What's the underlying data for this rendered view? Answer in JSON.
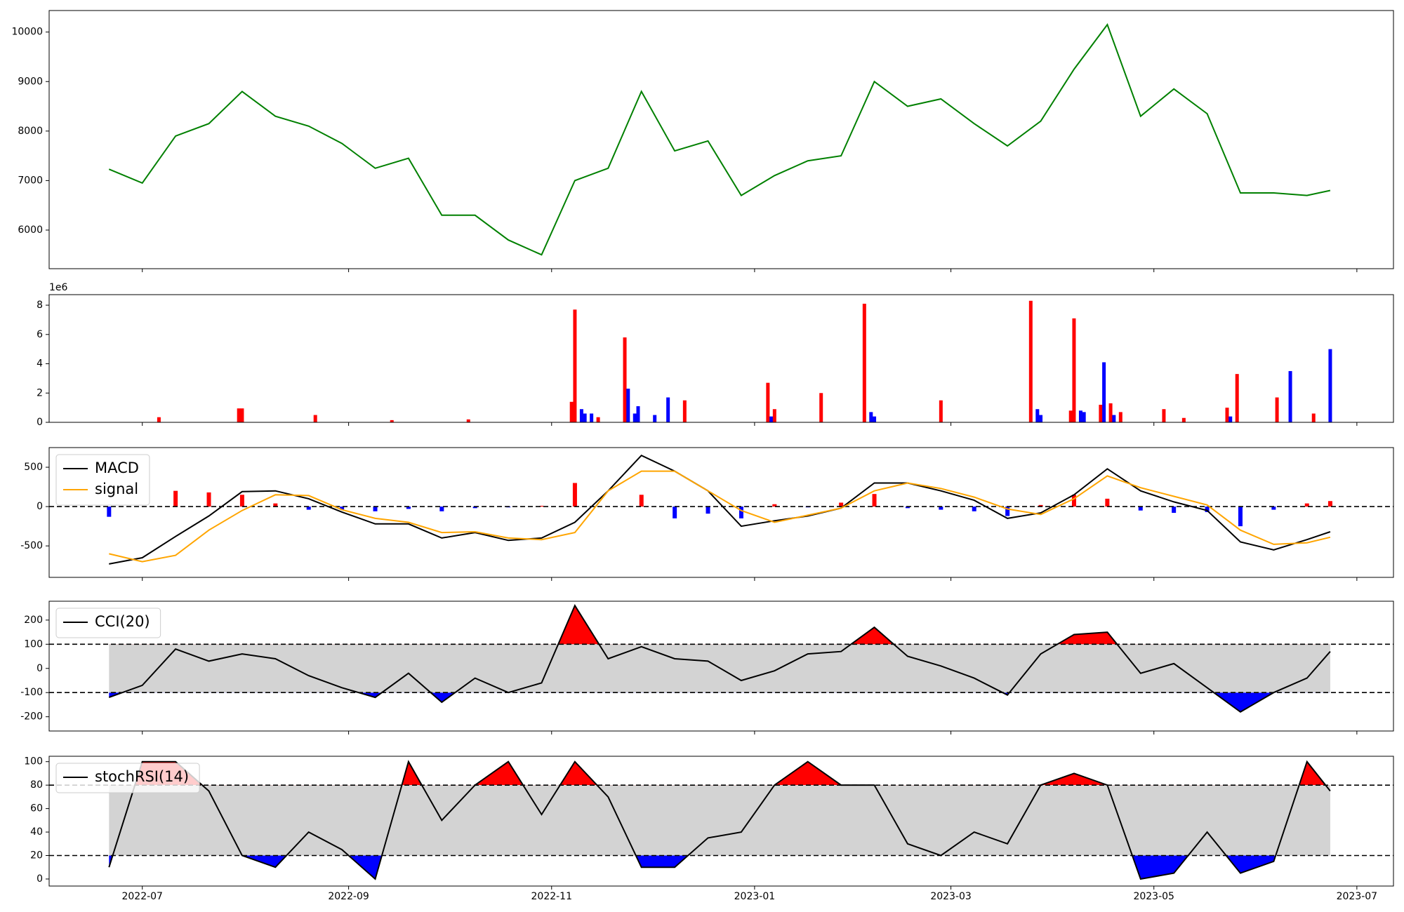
{
  "chart_data": [
    {
      "type": "line",
      "color": "#008000",
      "x": [
        19164,
        19174,
        19184,
        19194,
        19204,
        19214,
        19224,
        19234,
        19244,
        19254,
        19264,
        19274,
        19284,
        19294,
        19304,
        19314,
        19324,
        19334,
        19344,
        19354,
        19364,
        19374,
        19384,
        19394,
        19404,
        19414,
        19424,
        19434,
        19444,
        19454,
        19464,
        19474,
        19484,
        19494,
        19504,
        19514,
        19524,
        19531
      ],
      "values": [
        7230,
        6950,
        7900,
        8150,
        8800,
        8300,
        8100,
        7750,
        7250,
        7450,
        6300,
        6300,
        5800,
        5500,
        7000,
        7250,
        8800,
        7600,
        7800,
        6700,
        7100,
        7400,
        7500,
        9000,
        8500,
        8650,
        8150,
        7700,
        8200,
        9250,
        10150,
        8300,
        8850,
        8350,
        6750,
        6750,
        6700,
        6800
      ],
      "xlim": [
        19146,
        19550
      ],
      "ylim": [
        5220,
        10435
      ],
      "yticks": [
        6000,
        7000,
        8000,
        9000,
        10000
      ]
    },
    {
      "type": "bar",
      "offset_label": "1e6",
      "x": [
        19179,
        19203,
        19204,
        19226,
        19249,
        19272,
        19303,
        19304,
        19306,
        19307,
        19309,
        19311,
        19319,
        19320,
        19322,
        19323,
        19328,
        19332,
        19337,
        19362,
        19363,
        19364,
        19378,
        19391,
        19393,
        19394,
        19414,
        19441,
        19443,
        19444,
        19453,
        19454,
        19456,
        19457,
        19462,
        19463,
        19465,
        19466,
        19468,
        19481,
        19487,
        19500,
        19501,
        19503,
        19515,
        19519,
        19526,
        19531
      ],
      "values": [
        350000,
        950000,
        950000,
        500000,
        150000,
        200000,
        1400000,
        7700000,
        900000,
        600000,
        600000,
        350000,
        5800000,
        2300000,
        600000,
        1100000,
        500000,
        1700000,
        1500000,
        2700000,
        400000,
        900000,
        2000000,
        8100000,
        700000,
        400000,
        1500000,
        8300000,
        900000,
        500000,
        800000,
        7100000,
        800000,
        700000,
        1200000,
        4100000,
        1300000,
        500000,
        700000,
        900000,
        300000,
        1000000,
        400000,
        3300000,
        1700000,
        3500000,
        600000,
        5000000
      ],
      "colors": [
        "red",
        "red",
        "red",
        "red",
        "red",
        "red",
        "red",
        "red",
        "blue",
        "blue",
        "blue",
        "red",
        "red",
        "blue",
        "blue",
        "blue",
        "blue",
        "blue",
        "red",
        "red",
        "blue",
        "red",
        "red",
        "red",
        "blue",
        "blue",
        "red",
        "red",
        "blue",
        "blue",
        "red",
        "red",
        "blue",
        "blue",
        "red",
        "blue",
        "red",
        "blue",
        "red",
        "red",
        "red",
        "red",
        "blue",
        "red",
        "red",
        "blue",
        "red",
        "blue"
      ],
      "xlim": [
        19146,
        19550
      ],
      "ylim": [
        0,
        8720000
      ],
      "yticks": [
        {
          "value": 0,
          "label": "0"
        },
        {
          "value": 2000000,
          "label": "2"
        },
        {
          "value": 4000000,
          "label": "4"
        },
        {
          "value": 6000000,
          "label": "6"
        },
        {
          "value": 8000000,
          "label": "8"
        }
      ]
    },
    {
      "type": "macd",
      "legend": "upper left",
      "hline": 0,
      "up_color": "red",
      "down_color": "blue",
      "x": [
        19164,
        19174,
        19184,
        19194,
        19204,
        19214,
        19224,
        19234,
        19244,
        19254,
        19264,
        19274,
        19284,
        19294,
        19304,
        19314,
        19324,
        19334,
        19344,
        19354,
        19364,
        19374,
        19384,
        19394,
        19404,
        19414,
        19424,
        19434,
        19444,
        19454,
        19464,
        19474,
        19484,
        19494,
        19504,
        19514,
        19524,
        19531
      ],
      "series": [
        {
          "name": "MACD",
          "color": "black",
          "values": [
            -730,
            -650,
            -380,
            -120,
            190,
            200,
            100,
            -70,
            -220,
            -220,
            -400,
            -330,
            -430,
            -400,
            -200,
            200,
            650,
            450,
            200,
            -250,
            -180,
            -120,
            -20,
            300,
            300,
            200,
            80,
            -150,
            -80,
            150,
            480,
            200,
            60,
            -50,
            -450,
            -550,
            -420,
            -320
          ]
        },
        {
          "name": "signal",
          "color": "orange",
          "values": [
            -600,
            -700,
            -620,
            -300,
            -50,
            150,
            140,
            -40,
            -150,
            -200,
            -330,
            -320,
            -400,
            -420,
            -330,
            200,
            450,
            450,
            200,
            -50,
            -200,
            -110,
            -20,
            200,
            300,
            230,
            120,
            -30,
            -100,
            100,
            390,
            240,
            130,
            20,
            -300,
            -480,
            -460,
            -390
          ]
        }
      ],
      "histogram": [
        -130,
        0,
        200,
        180,
        150,
        40,
        -40,
        -40,
        -60,
        -30,
        -60,
        -20,
        -10,
        10,
        300,
        0,
        150,
        -150,
        -90,
        -150,
        30,
        -10,
        50,
        160,
        -20,
        -40,
        -60,
        -120,
        20,
        150,
        100,
        -50,
        -80,
        -70,
        -250,
        -40,
        40,
        70
      ],
      "xlim": [
        19146,
        19550
      ],
      "ylim": [
        -900,
        750
      ],
      "yticks": [
        -500,
        0,
        500
      ]
    },
    {
      "type": "band",
      "legend": "upper left",
      "bands": [
        -100,
        100
      ],
      "band_color": "lightgray",
      "upper_color": "red",
      "lower_color": "blue",
      "x": [
        19164,
        19174,
        19184,
        19194,
        19204,
        19214,
        19224,
        19234,
        19244,
        19254,
        19264,
        19274,
        19284,
        19294,
        19304,
        19314,
        19324,
        19334,
        19344,
        19354,
        19364,
        19374,
        19384,
        19394,
        19404,
        19414,
        19424,
        19434,
        19444,
        19454,
        19464,
        19474,
        19484,
        19494,
        19504,
        19514,
        19524,
        19531
      ],
      "series": [
        {
          "name": "CCI(20)",
          "color": "black",
          "values": [
            -120,
            -70,
            80,
            30,
            60,
            40,
            -30,
            -80,
            -120,
            -20,
            -140,
            -40,
            -100,
            -60,
            260,
            40,
            90,
            40,
            30,
            -50,
            -10,
            60,
            70,
            170,
            50,
            10,
            -40,
            -110,
            60,
            140,
            150,
            -20,
            20,
            -80,
            -180,
            -100,
            -40,
            70
          ]
        }
      ],
      "xlim": [
        19146,
        19550
      ],
      "ylim": [
        -259,
        278
      ],
      "yticks": [
        -200,
        -100,
        0,
        100,
        200
      ]
    },
    {
      "type": "band",
      "legend": "upper left",
      "bands": [
        20,
        80
      ],
      "band_color": "lightgray",
      "upper_color": "red",
      "lower_color": "blue",
      "x": [
        19164,
        19174,
        19184,
        19194,
        19204,
        19214,
        19224,
        19234,
        19244,
        19254,
        19264,
        19274,
        19284,
        19294,
        19304,
        19314,
        19324,
        19334,
        19344,
        19354,
        19364,
        19374,
        19384,
        19394,
        19404,
        19414,
        19424,
        19434,
        19444,
        19454,
        19464,
        19474,
        19484,
        19494,
        19504,
        19514,
        19524,
        19531
      ],
      "series": [
        {
          "name": "stochRSI(14)",
          "color": "black",
          "values": [
            10,
            100,
            100,
            75,
            20,
            10,
            40,
            25,
            0,
            100,
            50,
            80,
            100,
            55,
            100,
            70,
            10,
            10,
            35,
            40,
            80,
            100,
            80,
            80,
            30,
            20,
            40,
            30,
            80,
            90,
            80,
            0,
            5,
            40,
            5,
            15,
            100,
            75
          ]
        }
      ],
      "xlim": [
        19146,
        19550
      ],
      "ylim": [
        -6,
        104.6
      ],
      "yticks": [
        0,
        20,
        40,
        60,
        80,
        100
      ],
      "xticks": [
        {
          "value": 19174,
          "label": "2022-07"
        },
        {
          "value": 19236,
          "label": "2022-09"
        },
        {
          "value": 19297,
          "label": "2022-11"
        },
        {
          "value": 19358,
          "label": "2023-01"
        },
        {
          "value": 19417,
          "label": "2023-03"
        },
        {
          "value": 19478,
          "label": "2023-05"
        },
        {
          "value": 19539,
          "label": "2023-07"
        }
      ]
    }
  ]
}
